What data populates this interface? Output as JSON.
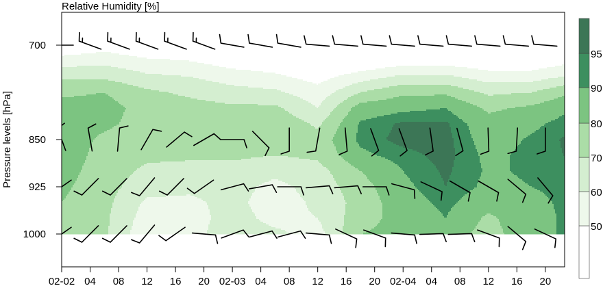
{
  "chart_data": {
    "type": "heatmap",
    "title": "Relative Humidity [%]",
    "xlabel": "",
    "ylabel": "Pressure levels [hPa]",
    "x_tick_labels": [
      "02-02",
      "04",
      "08",
      "12",
      "16",
      "20",
      "02-03",
      "04",
      "08",
      "12",
      "16",
      "20",
      "02-04",
      "04",
      "08",
      "12",
      "16",
      "20"
    ],
    "x_tick_hours": [
      0,
      4,
      8,
      12,
      16,
      20,
      24,
      28,
      32,
      36,
      40,
      44,
      48,
      52,
      56,
      60,
      64,
      68
    ],
    "xlim_hours": [
      0,
      70.7
    ],
    "y_tick_labels": [
      "700",
      "850",
      "925",
      "1000"
    ],
    "y_ticks": [
      700,
      850,
      925,
      1000
    ],
    "ylim": [
      1052,
      628
    ],
    "colorbar": {
      "levels": [
        50,
        60,
        70,
        80,
        90,
        95
      ],
      "tick_labels": [
        "50",
        "60",
        "70",
        "80",
        "90",
        "95"
      ],
      "colors": [
        "#ffffff",
        "#eef8eb",
        "#d4eed0",
        "#abdda7",
        "#7cc481",
        "#3d8f5f",
        "#3c7656"
      ]
    },
    "time_hours": [
      0,
      6,
      12,
      18,
      24,
      30,
      36,
      42,
      48,
      54,
      60,
      66,
      72
    ],
    "pressure_levels": [
      700,
      725,
      750,
      775,
      800,
      825,
      850,
      875,
      900,
      925,
      950,
      975,
      1000
    ],
    "rh": [
      [
        40,
        45,
        40,
        40,
        38,
        35,
        30,
        30,
        30,
        30,
        30,
        32,
        35
      ],
      [
        55,
        57,
        52,
        50,
        45,
        43,
        38,
        40,
        45,
        45,
        42,
        42,
        48
      ],
      [
        68,
        68,
        62,
        60,
        55,
        52,
        46,
        55,
        62,
        62,
        55,
        55,
        62
      ],
      [
        78,
        80,
        72,
        68,
        64,
        62,
        54,
        70,
        78,
        78,
        68,
        70,
        80
      ],
      [
        84,
        84,
        76,
        74,
        72,
        72,
        60,
        85,
        88,
        90,
        78,
        82,
        90
      ],
      [
        85,
        82,
        76,
        76,
        75,
        78,
        68,
        91,
        96,
        96,
        84,
        88,
        94
      ],
      [
        86,
        78,
        74,
        75,
        74,
        78,
        74,
        92,
        97,
        97,
        86,
        91,
        97
      ],
      [
        86,
        76,
        72,
        72,
        72,
        70,
        72,
        88,
        93,
        97,
        88,
        92,
        96
      ],
      [
        84,
        75,
        68,
        66,
        66,
        63,
        66,
        80,
        90,
        96,
        89,
        91,
        94
      ],
      [
        82,
        74,
        64,
        62,
        64,
        57,
        64,
        76,
        88,
        95,
        88,
        90,
        92
      ],
      [
        80,
        73,
        58,
        58,
        63,
        55,
        62,
        74,
        86,
        92,
        84,
        88,
        92
      ],
      [
        76,
        72,
        55,
        56,
        64,
        57,
        60,
        76,
        84,
        90,
        78,
        87,
        92
      ],
      [
        74,
        72,
        52,
        56,
        66,
        62,
        56,
        80,
        83,
        85,
        76,
        87,
        92
      ]
    ],
    "wind_barbs": {
      "hours": [
        0,
        4,
        8,
        12,
        16,
        20,
        24,
        28,
        32,
        36,
        40,
        44,
        48,
        52,
        56,
        60,
        64,
        68
      ],
      "levels": [
        {
          "pressure": 700,
          "dir": [
            270,
            290,
            290,
            290,
            290,
            290,
            280,
            280,
            280,
            275,
            275,
            275,
            275,
            275,
            275,
            275,
            275,
            275
          ],
          "speed": [
            5,
            15,
            15,
            15,
            15,
            15,
            10,
            10,
            10,
            10,
            10,
            10,
            10,
            10,
            10,
            10,
            10,
            10
          ]
        },
        {
          "pressure": 850,
          "dir": [
            340,
            350,
            5,
            30,
            50,
            60,
            90,
            135,
            180,
            190,
            175,
            160,
            160,
            172,
            165,
            178,
            183,
            180
          ],
          "speed": [
            10,
            10,
            10,
            10,
            10,
            10,
            10,
            10,
            10,
            10,
            10,
            10,
            10,
            10,
            10,
            10,
            10,
            10
          ]
        },
        {
          "pressure": 925,
          "dir": [
            235,
            225,
            225,
            220,
            225,
            235,
            75,
            80,
            90,
            85,
            85,
            90,
            105,
            115,
            120,
            120,
            130,
            140
          ],
          "speed": [
            10,
            10,
            10,
            10,
            10,
            10,
            10,
            10,
            10,
            10,
            10,
            10,
            10,
            10,
            10,
            10,
            10,
            10
          ]
        },
        {
          "pressure": 1000,
          "dir": [
            235,
            225,
            225,
            220,
            235,
            95,
            70,
            75,
            75,
            95,
            115,
            110,
            95,
            88,
            88,
            110,
            130,
            115
          ],
          "speed": [
            10,
            10,
            10,
            10,
            10,
            10,
            10,
            10,
            10,
            10,
            10,
            10,
            10,
            10,
            10,
            10,
            10,
            10
          ]
        }
      ]
    },
    "grid": false,
    "legend": "colorbar-right"
  }
}
